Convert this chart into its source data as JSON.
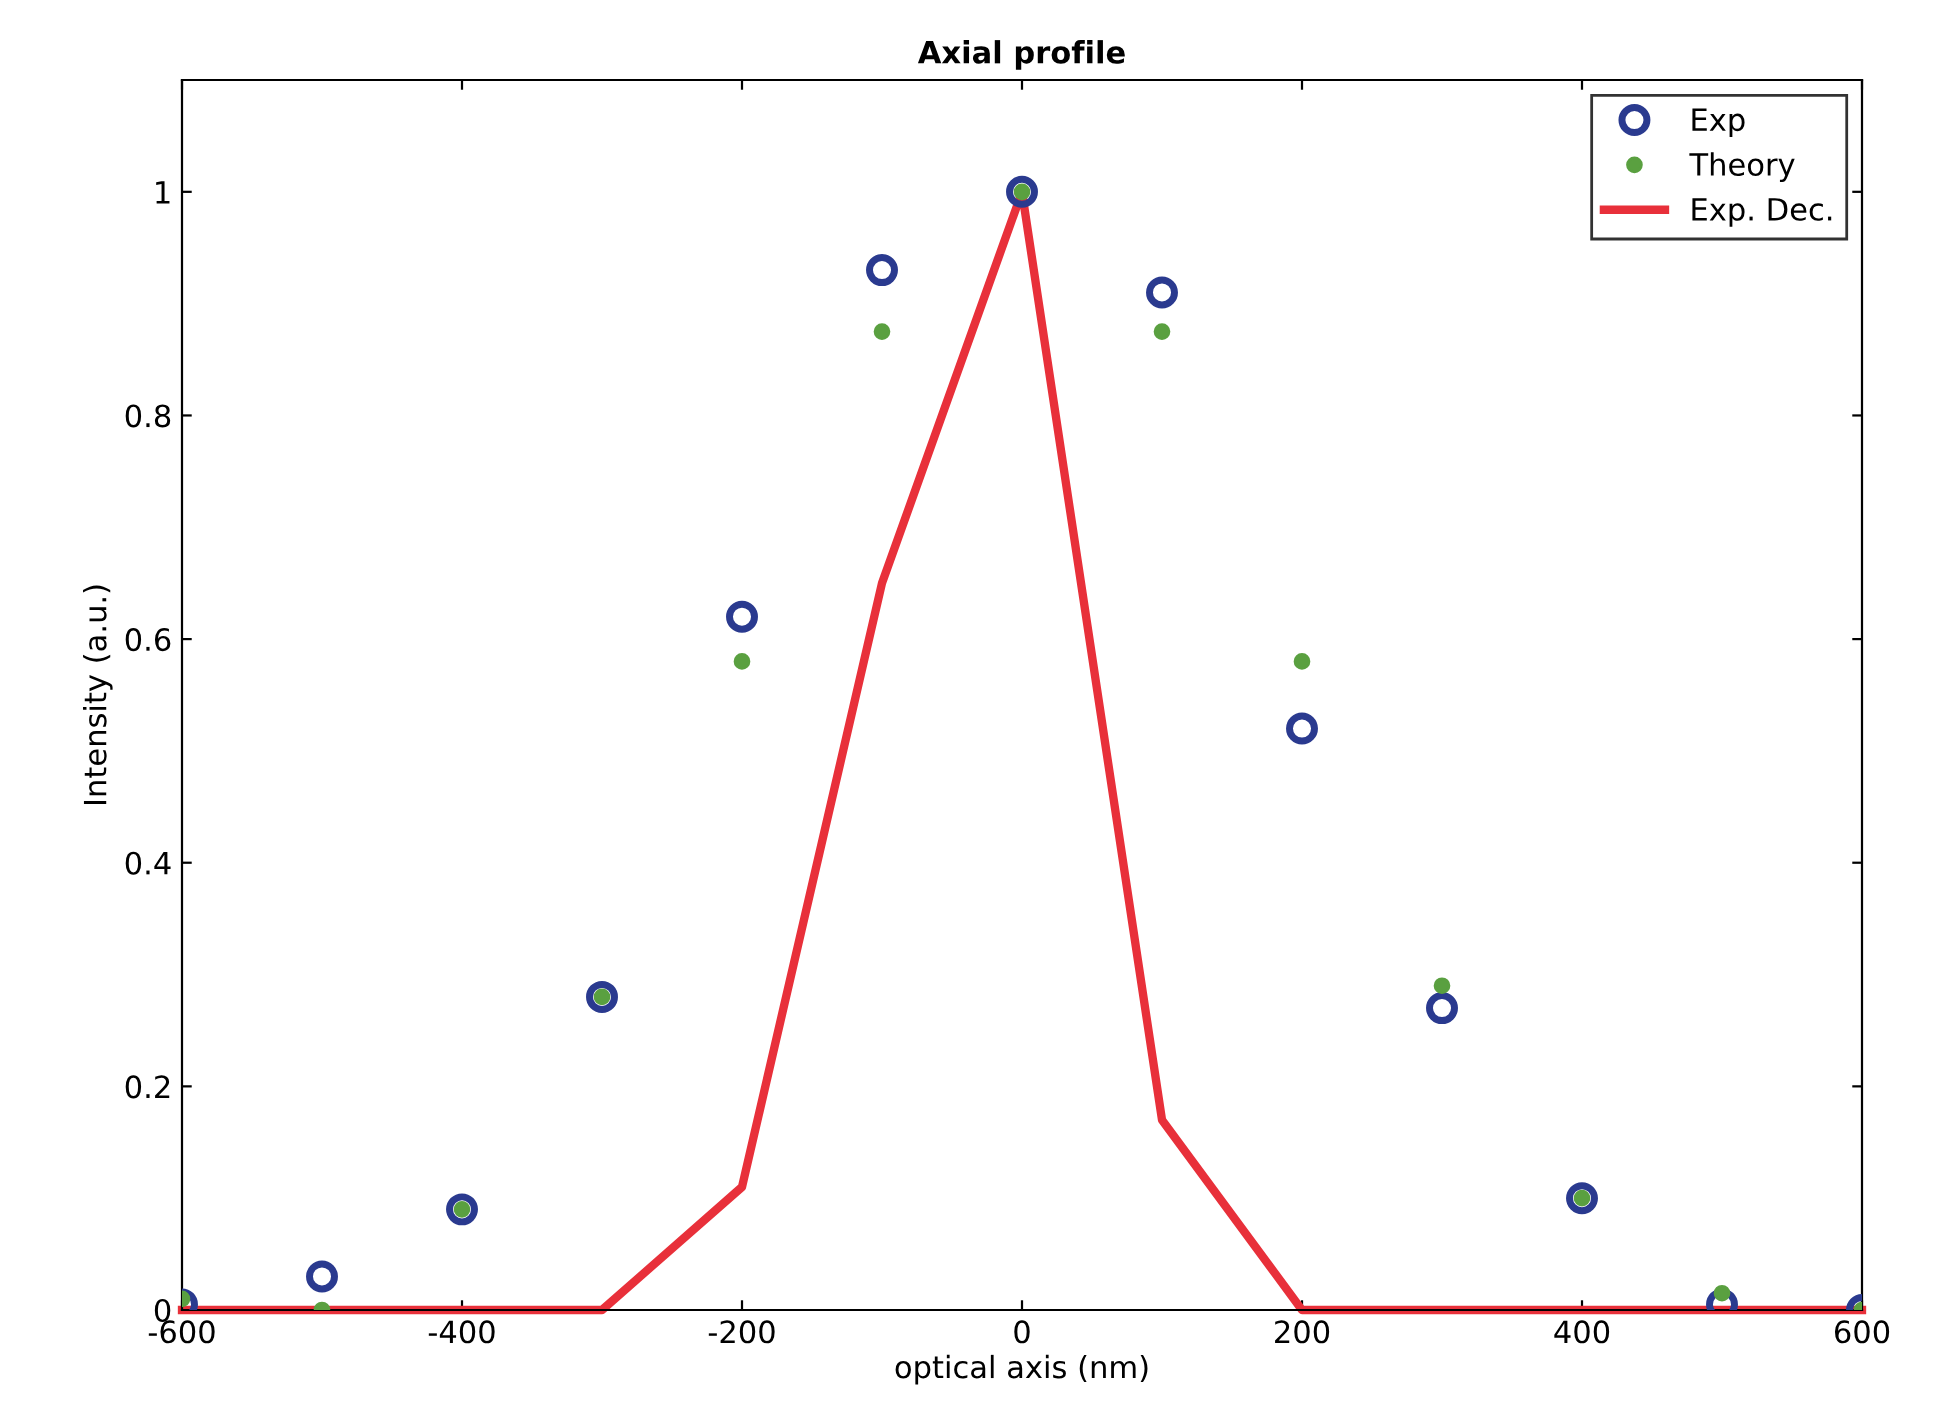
{
  "chart_data": {
    "type": "scatter",
    "title": "Axial profile",
    "xlabel": "optical axis (nm)",
    "ylabel": "Intensity (a.u.)",
    "x": [
      -600,
      -500,
      -400,
      -300,
      -200,
      -100,
      0,
      100,
      200,
      300,
      400,
      500,
      600
    ],
    "series": [
      {
        "name": "Exp",
        "marker": "circle",
        "color": "#2a3a8f",
        "values": [
          0.005,
          0.03,
          0.09,
          0.28,
          0.62,
          0.93,
          1.0,
          0.91,
          0.52,
          0.27,
          0.1,
          0.005,
          0
        ]
      },
      {
        "name": "Theory",
        "marker": "circle",
        "color": "#5aa040",
        "values": [
          0.01,
          0,
          0.09,
          0.28,
          0.58,
          0.875,
          1.0,
          0.875,
          0.58,
          0.29,
          0.1,
          0.015,
          0
        ]
      },
      {
        "name": "Exp. Dec.",
        "type": "line",
        "marker": "none",
        "line_style": "solid",
        "color": "#e8303a",
        "values": [
          0,
          0,
          0,
          0,
          0.11,
          0.65,
          1.0,
          0.17,
          0,
          0,
          0,
          0,
          0
        ]
      }
    ],
    "xlim": [
      -600,
      600
    ],
    "ylim": [
      0,
      1.1
    ],
    "xticks": [
      -600,
      -400,
      -200,
      0,
      200,
      400,
      600
    ],
    "yticks": [
      0,
      0.2,
      0.4,
      0.6,
      0.8,
      1
    ],
    "legend": "top right",
    "grid": false
  }
}
